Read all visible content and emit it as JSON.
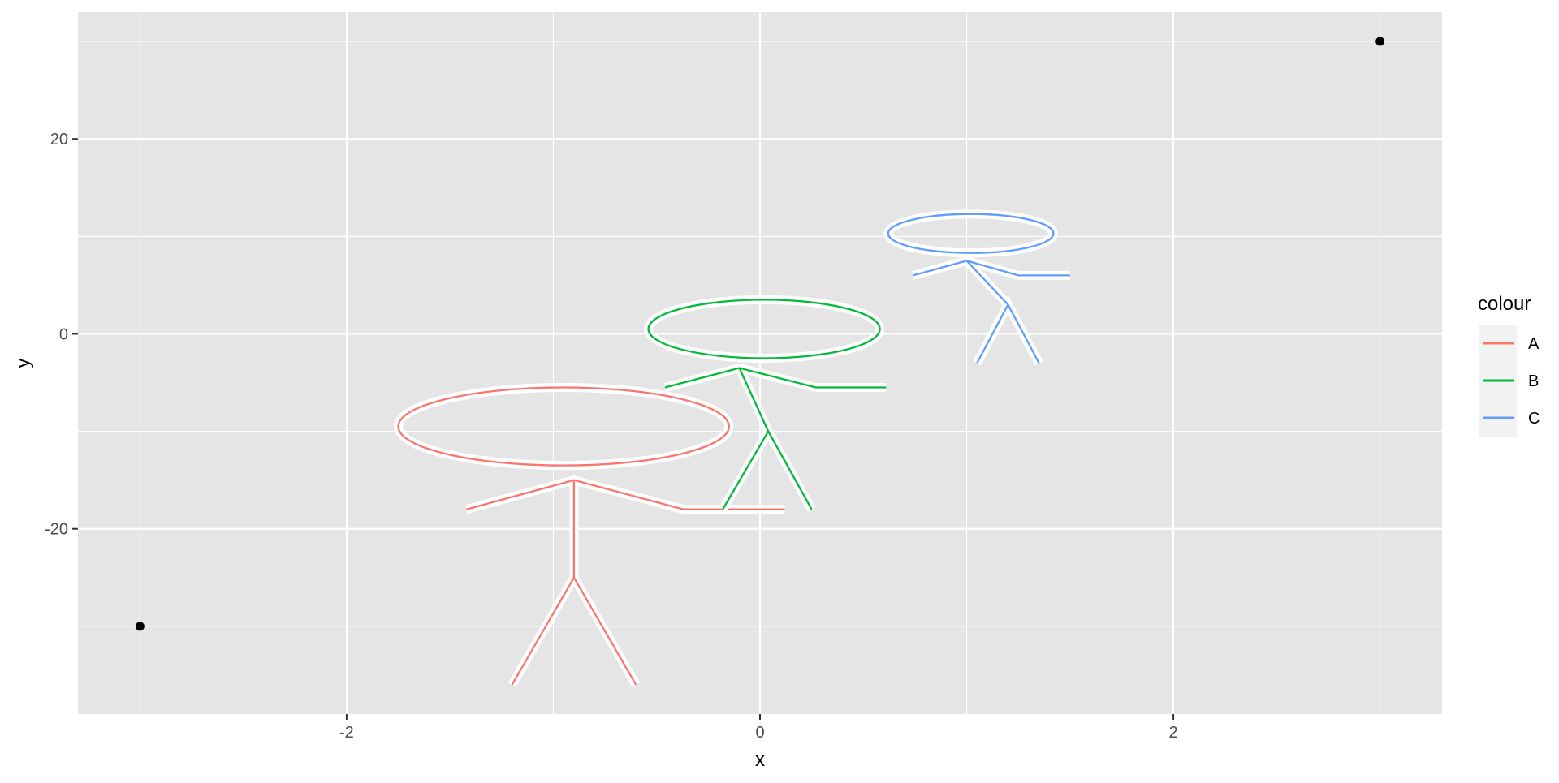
{
  "chart_data": {
    "type": "line",
    "title": "",
    "xlabel": "x",
    "ylabel": "y",
    "xlim": [
      -3.3,
      3.3
    ],
    "ylim": [
      -39,
      33
    ],
    "x_ticks": [
      -2,
      0,
      2
    ],
    "x_tick_labels": [
      "-2",
      "0",
      "2"
    ],
    "y_ticks": [
      -20,
      0,
      20
    ],
    "y_tick_labels": [
      "-20",
      "0",
      "20"
    ],
    "grid": true,
    "background": "#E5E5E5",
    "legend": {
      "title": "colour",
      "position": "right",
      "entries": [
        {
          "label": "A",
          "color": "#F8766D"
        },
        {
          "label": "B",
          "color": "#00BA38"
        },
        {
          "label": "C",
          "color": "#619CFF"
        }
      ]
    },
    "points": [
      {
        "x": -3,
        "y": -30
      },
      {
        "x": 3,
        "y": 30
      }
    ],
    "series": [
      {
        "name": "A",
        "color": "#F8766D",
        "head": {
          "cx": -0.95,
          "cy": -9.5,
          "rx": 0.8,
          "ry": 4
        },
        "segments": [
          [
            [
              -1.42,
              -18
            ],
            [
              -0.9,
              -15
            ],
            [
              -0.37,
              -18
            ],
            [
              0.12,
              -18
            ]
          ],
          [
            [
              -0.9,
              -15
            ],
            [
              -0.9,
              -25
            ]
          ],
          [
            [
              -1.2,
              -36
            ],
            [
              -0.9,
              -25
            ],
            [
              -0.6,
              -36
            ]
          ]
        ]
      },
      {
        "name": "B",
        "color": "#00BA38",
        "head": {
          "cx": 0.02,
          "cy": 0.5,
          "rx": 0.56,
          "ry": 3
        },
        "segments": [
          [
            [
              -0.46,
              -5.5
            ],
            [
              -0.1,
              -3.5
            ],
            [
              0.27,
              -5.5
            ],
            [
              0.61,
              -5.5
            ]
          ],
          [
            [
              -0.1,
              -3.5
            ],
            [
              0.04,
              -10
            ]
          ],
          [
            [
              -0.18,
              -18
            ],
            [
              0.04,
              -10
            ],
            [
              0.25,
              -18
            ]
          ]
        ]
      },
      {
        "name": "C",
        "color": "#619CFF",
        "head": {
          "cx": 1.02,
          "cy": 10.3,
          "rx": 0.4,
          "ry": 2
        },
        "segments": [
          [
            [
              0.74,
              6
            ],
            [
              1.0,
              7.5
            ],
            [
              1.25,
              6
            ],
            [
              1.5,
              6
            ]
          ],
          [
            [
              1.0,
              7.5
            ],
            [
              1.2,
              3
            ]
          ],
          [
            [
              1.05,
              -3
            ],
            [
              1.2,
              3
            ],
            [
              1.35,
              -3
            ]
          ]
        ]
      }
    ]
  }
}
